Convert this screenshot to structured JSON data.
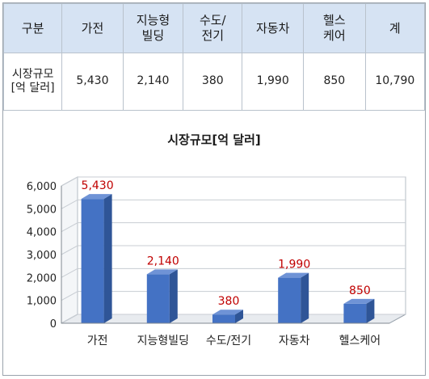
{
  "table": {
    "header": [
      "구분",
      "가전",
      "지능형\n빌딩",
      "수도/\n전기",
      "자동차",
      "헬스\n케어",
      "계"
    ],
    "row_label": "시장규모\n[억 달러]",
    "values": [
      "5,430",
      "2,140",
      "380",
      "1,990",
      "850",
      "10,790"
    ]
  },
  "chart_data": {
    "type": "bar",
    "title": "시장규모[억 달러]",
    "categories": [
      "가전",
      "지능형빌딩",
      "수도/전기",
      "자동차",
      "헬스케어"
    ],
    "values": [
      5430,
      2140,
      380,
      1990,
      850
    ],
    "data_labels": [
      "5,430",
      "2,140",
      "380",
      "1,990",
      "850"
    ],
    "ylim": [
      0,
      6000
    ],
    "yticks": [
      0,
      1000,
      2000,
      3000,
      4000,
      5000,
      6000
    ],
    "ytick_labels": [
      "0",
      "1,000",
      "2,000",
      "3,000",
      "4,000",
      "5,000",
      "6,000"
    ],
    "xlabel": "",
    "ylabel": "",
    "grid": true,
    "bar_color": "#4472c4",
    "label_color": "#c00000"
  }
}
